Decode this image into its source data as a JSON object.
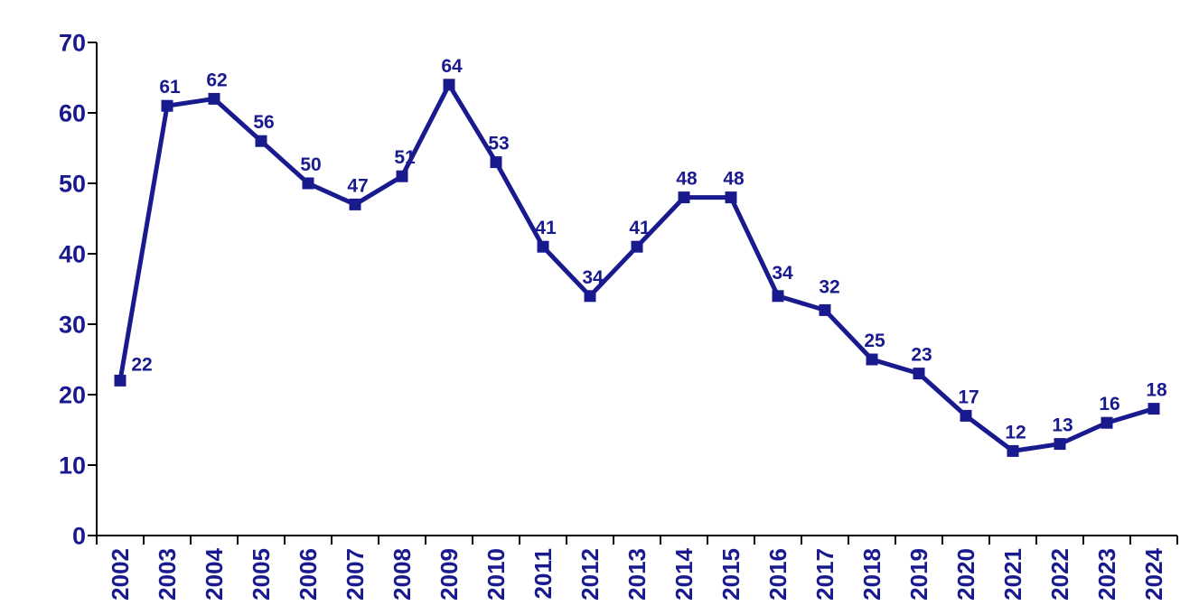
{
  "chart_data": {
    "type": "line",
    "title": "",
    "xlabel": "",
    "ylabel": "",
    "categories": [
      "2002",
      "2003",
      "2004",
      "2005",
      "2006",
      "2007",
      "2008",
      "2009",
      "2010",
      "2011",
      "2012",
      "2013",
      "2014",
      "2015",
      "2016",
      "2017",
      "2018",
      "2019",
      "2020",
      "2021",
      "2022",
      "2023",
      "2024"
    ],
    "values": [
      22,
      61,
      62,
      56,
      50,
      47,
      51,
      64,
      53,
      41,
      34,
      41,
      48,
      48,
      34,
      32,
      25,
      23,
      17,
      12,
      13,
      16,
      18
    ],
    "data_labels": [
      "22",
      "61",
      "62",
      "56",
      "50",
      "47",
      "51",
      "64",
      "53",
      "41",
      "34",
      "41",
      "48",
      "48",
      "34",
      "32",
      "25",
      "23",
      "17",
      "12",
      "13",
      "16",
      "18"
    ],
    "yticks": [
      "0",
      "10",
      "20",
      "30",
      "40",
      "50",
      "60",
      "70"
    ],
    "ytick_values": [
      0,
      10,
      20,
      30,
      40,
      50,
      60,
      70
    ],
    "ylim": [
      0,
      70
    ],
    "grid": false,
    "legend": "none",
    "marker": "filled-square",
    "x_tick_label_rotation": -90,
    "series_color": "#1A1A8F",
    "label_color": "#1A1A8F",
    "axis_color": "#000000",
    "background_color": "#FFFFFF"
  }
}
